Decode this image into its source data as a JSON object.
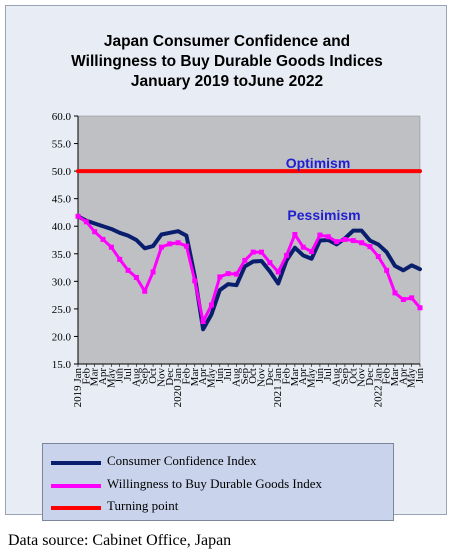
{
  "chart_data": {
    "type": "line",
    "title": "Japan Consumer Confidence and Willingness to Buy Durable Goods Indices January 2019 toJune 2022",
    "title_lines": [
      "Japan Consumer Confidence and",
      "Willingness  to Buy Durable Goods Indices",
      "January 2019 toJune 2022"
    ],
    "ylim": [
      15.0,
      60.0
    ],
    "y_ticks": [
      "15.0",
      "20.0",
      "25.0",
      "30.0",
      "35.0",
      "40.0",
      "45.0",
      "50.0",
      "55.0",
      "60.0"
    ],
    "x": [
      "2019 Jan",
      "Feb",
      "Mar",
      "Apr",
      "May",
      "Jun",
      "Jul",
      "Aug",
      "Sep",
      "Oct",
      "Nov",
      "Dec",
      "2020 Jan",
      "Feb",
      "Mar",
      "Apr",
      "May",
      "Jun",
      "Jul",
      "Aug",
      "Sep",
      "Oct",
      "Nov",
      "Dec",
      "2021 Jan",
      "Feb",
      "Mar",
      "Apr",
      "May",
      "Jun",
      "Jul",
      "Aug",
      "Sep",
      "Oct",
      "Nov",
      "Dec",
      "2022 Jan",
      "Feb",
      "Mar",
      "Apr",
      "May",
      "Jun"
    ],
    "series": [
      {
        "name": "Consumer Confidence Index",
        "color": "#0a1e6e",
        "values": [
          41.8,
          41.0,
          40.5,
          40.0,
          39.5,
          38.8,
          38.3,
          37.5,
          36.0,
          36.4,
          38.5,
          38.8,
          39.1,
          38.3,
          30.9,
          21.3,
          24.0,
          28.4,
          29.5,
          29.3,
          32.7,
          33.6,
          33.7,
          31.8,
          29.6,
          33.8,
          36.1,
          34.7,
          34.1,
          37.4,
          37.5,
          36.7,
          37.8,
          39.2,
          39.2,
          37.4,
          36.7,
          35.3,
          32.8,
          32.0,
          32.9,
          32.2
        ]
      },
      {
        "name": "Willingness to Buy Durable Goods Index",
        "color": "#ff00ff",
        "values": [
          41.8,
          40.8,
          39.0,
          37.6,
          36.2,
          34.0,
          32.0,
          30.7,
          28.2,
          31.7,
          36.2,
          36.8,
          37.0,
          36.4,
          30.1,
          22.7,
          25.7,
          30.8,
          31.4,
          31.3,
          33.8,
          35.3,
          35.3,
          33.4,
          31.7,
          34.7,
          38.5,
          36.2,
          35.4,
          38.4,
          38.1,
          37.2,
          37.6,
          37.4,
          37.0,
          36.3,
          34.5,
          32.0,
          27.9,
          26.7,
          27.0,
          25.2
        ]
      },
      {
        "name": "Turning point",
        "color": "#ff0000",
        "values": [
          50.0,
          50.0,
          50.0,
          50.0,
          50.0,
          50.0,
          50.0,
          50.0,
          50.0,
          50.0,
          50.0,
          50.0,
          50.0,
          50.0,
          50.0,
          50.0,
          50.0,
          50.0,
          50.0,
          50.0,
          50.0,
          50.0,
          50.0,
          50.0,
          50.0,
          50.0,
          50.0,
          50.0,
          50.0,
          50.0,
          50.0,
          50.0,
          50.0,
          50.0,
          50.0,
          50.0,
          50.0,
          50.0,
          50.0,
          50.0,
          50.0,
          50.0
        ]
      }
    ],
    "annotations": [
      "Optimism",
      "Pessimism"
    ],
    "grid": false,
    "legend": "bottom"
  },
  "data_source": "Data source: Cabinet Office, Japan"
}
